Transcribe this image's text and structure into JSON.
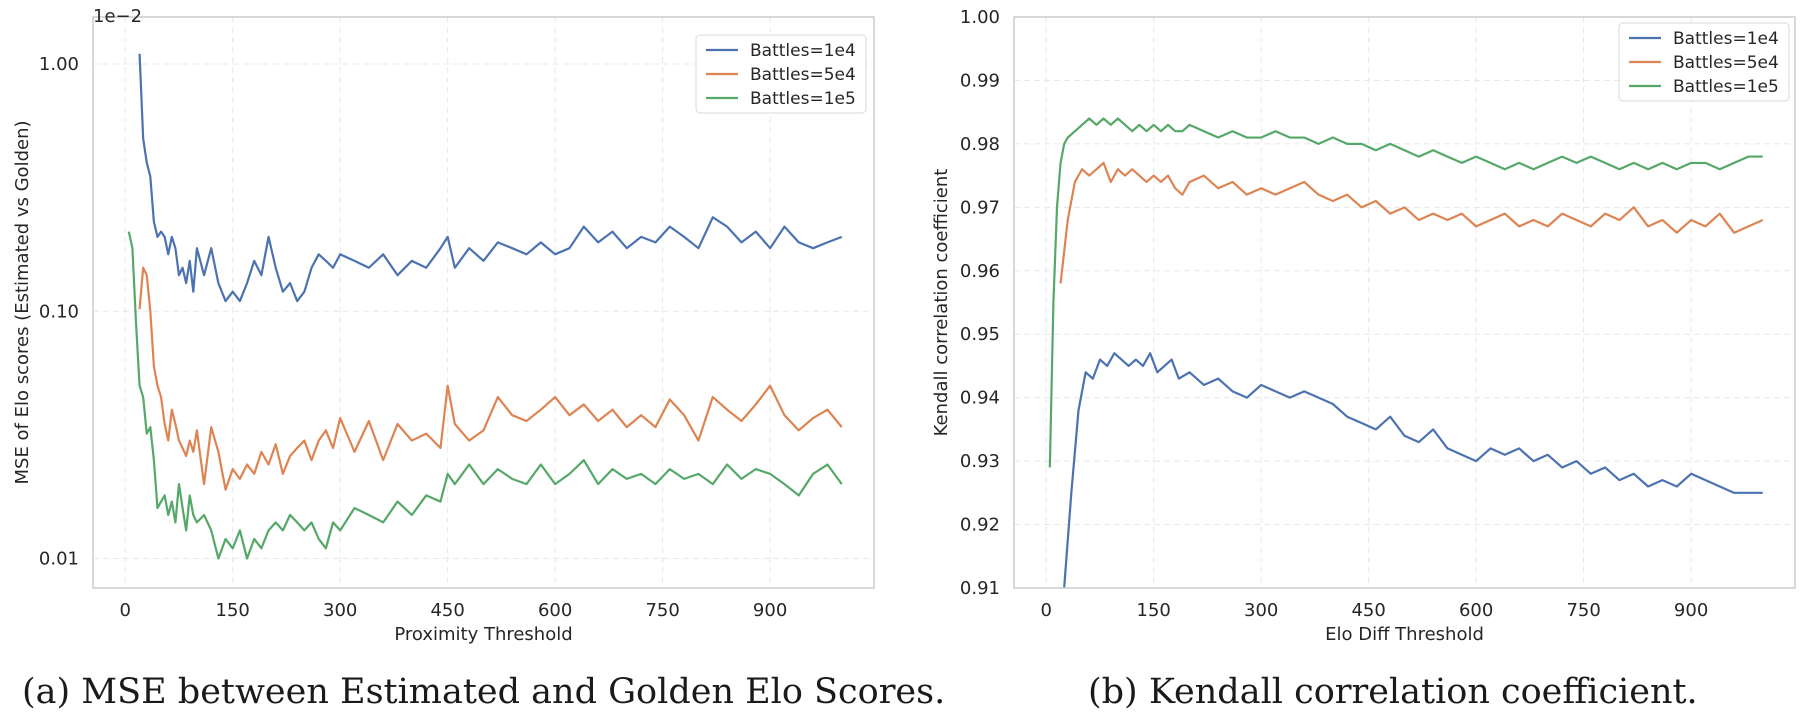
{
  "captions": {
    "a": "(a) MSE between Estimated and Golden Elo Scores.",
    "b": "(b) Kendall correlation coefficient."
  },
  "colors": {
    "blue": "#4c72b0",
    "orange": "#dd8452",
    "green": "#55a868",
    "grid": "#e8e8e8",
    "spine": "#cccccc"
  },
  "chart_data": [
    {
      "type": "line",
      "id": "a",
      "xlabel": "Proximity Threshold",
      "ylabel": "MSE of Elo scores (Estimated vs Golden)",
      "offset_text": "1e−2",
      "yscale": "log",
      "xlim": [
        -45,
        1045
      ],
      "ylim": [
        0.0076,
        1.55
      ],
      "xticks": [
        0,
        150,
        300,
        450,
        600,
        750,
        900
      ],
      "xtick_labels": [
        "0",
        "150",
        "300",
        "450",
        "600",
        "750",
        "900"
      ],
      "yticks": [
        0.01,
        0.1,
        1.0
      ],
      "ytick_labels": [
        "0.01",
        "0.10",
        "1.00"
      ],
      "grid": true,
      "legend_position": "top-right",
      "series": [
        {
          "name": "Battles=1e4",
          "color": "#4c72b0",
          "x": [
            20,
            25,
            30,
            35,
            40,
            45,
            50,
            55,
            60,
            65,
            70,
            75,
            80,
            85,
            90,
            95,
            100,
            110,
            120,
            130,
            140,
            150,
            160,
            170,
            180,
            190,
            200,
            210,
            220,
            230,
            240,
            250,
            260,
            270,
            280,
            290,
            300,
            320,
            340,
            360,
            380,
            400,
            420,
            440,
            450,
            460,
            480,
            500,
            520,
            540,
            560,
            580,
            600,
            620,
            640,
            660,
            680,
            700,
            720,
            740,
            760,
            780,
            800,
            820,
            840,
            860,
            880,
            900,
            920,
            940,
            960,
            980,
            1000
          ],
          "y": [
            1.1,
            0.5,
            0.4,
            0.35,
            0.23,
            0.2,
            0.21,
            0.2,
            0.17,
            0.2,
            0.18,
            0.14,
            0.15,
            0.13,
            0.16,
            0.12,
            0.18,
            0.14,
            0.18,
            0.13,
            0.11,
            0.12,
            0.11,
            0.13,
            0.16,
            0.14,
            0.2,
            0.15,
            0.12,
            0.13,
            0.11,
            0.12,
            0.15,
            0.17,
            0.16,
            0.15,
            0.17,
            0.16,
            0.15,
            0.17,
            0.14,
            0.16,
            0.15,
            0.18,
            0.2,
            0.15,
            0.18,
            0.16,
            0.19,
            0.18,
            0.17,
            0.19,
            0.17,
            0.18,
            0.22,
            0.19,
            0.21,
            0.18,
            0.2,
            0.19,
            0.22,
            0.2,
            0.18,
            0.24,
            0.22,
            0.19,
            0.21,
            0.18,
            0.22,
            0.19,
            0.18,
            0.19,
            0.2
          ]
        },
        {
          "name": "Battles=5e4",
          "color": "#dd8452",
          "x": [
            20,
            25,
            30,
            35,
            40,
            45,
            50,
            55,
            60,
            65,
            70,
            75,
            80,
            85,
            90,
            95,
            100,
            110,
            120,
            130,
            140,
            150,
            160,
            170,
            180,
            190,
            200,
            210,
            220,
            230,
            240,
            250,
            260,
            270,
            280,
            290,
            300,
            320,
            340,
            360,
            380,
            400,
            420,
            440,
            450,
            460,
            480,
            500,
            520,
            540,
            560,
            580,
            600,
            620,
            640,
            660,
            680,
            700,
            720,
            740,
            760,
            780,
            800,
            820,
            840,
            860,
            880,
            900,
            920,
            940,
            960,
            980,
            1000
          ],
          "y": [
            0.102,
            0.15,
            0.14,
            0.1,
            0.06,
            0.05,
            0.045,
            0.035,
            0.03,
            0.04,
            0.035,
            0.03,
            0.028,
            0.026,
            0.03,
            0.027,
            0.033,
            0.02,
            0.034,
            0.027,
            0.019,
            0.023,
            0.021,
            0.024,
            0.022,
            0.027,
            0.024,
            0.029,
            0.022,
            0.026,
            0.028,
            0.03,
            0.025,
            0.03,
            0.033,
            0.028,
            0.037,
            0.027,
            0.036,
            0.025,
            0.035,
            0.03,
            0.032,
            0.028,
            0.05,
            0.035,
            0.03,
            0.033,
            0.045,
            0.038,
            0.036,
            0.04,
            0.045,
            0.038,
            0.042,
            0.036,
            0.04,
            0.034,
            0.038,
            0.034,
            0.044,
            0.038,
            0.03,
            0.045,
            0.04,
            0.036,
            0.042,
            0.05,
            0.038,
            0.033,
            0.037,
            0.04,
            0.034
          ]
        },
        {
          "name": "Battles=1e5",
          "color": "#55a868",
          "x": [
            5,
            10,
            15,
            20,
            25,
            30,
            35,
            40,
            45,
            50,
            55,
            60,
            65,
            70,
            75,
            80,
            85,
            90,
            95,
            100,
            110,
            120,
            130,
            140,
            150,
            160,
            170,
            180,
            190,
            200,
            210,
            220,
            230,
            240,
            250,
            260,
            270,
            280,
            290,
            300,
            320,
            340,
            360,
            380,
            400,
            420,
            440,
            450,
            460,
            480,
            500,
            520,
            540,
            560,
            580,
            600,
            620,
            640,
            660,
            680,
            700,
            720,
            740,
            760,
            780,
            800,
            820,
            840,
            860,
            880,
            900,
            920,
            940,
            960,
            980,
            1000
          ],
          "y": [
            0.21,
            0.18,
            0.09,
            0.05,
            0.045,
            0.032,
            0.034,
            0.025,
            0.016,
            0.017,
            0.018,
            0.015,
            0.017,
            0.014,
            0.02,
            0.016,
            0.013,
            0.018,
            0.015,
            0.014,
            0.015,
            0.013,
            0.01,
            0.012,
            0.011,
            0.013,
            0.01,
            0.012,
            0.011,
            0.013,
            0.014,
            0.013,
            0.015,
            0.014,
            0.013,
            0.014,
            0.012,
            0.011,
            0.014,
            0.013,
            0.016,
            0.015,
            0.014,
            0.017,
            0.015,
            0.018,
            0.017,
            0.022,
            0.02,
            0.024,
            0.02,
            0.023,
            0.021,
            0.02,
            0.024,
            0.02,
            0.022,
            0.025,
            0.02,
            0.023,
            0.021,
            0.022,
            0.02,
            0.023,
            0.021,
            0.022,
            0.02,
            0.024,
            0.021,
            0.023,
            0.022,
            0.02,
            0.018,
            0.022,
            0.024,
            0.02
          ]
        }
      ]
    },
    {
      "type": "line",
      "id": "b",
      "xlabel": "Elo Diff Threshold",
      "ylabel": "Kendall correlation coefficient",
      "xlim": [
        -45,
        1045
      ],
      "ylim": [
        0.91,
        1.0
      ],
      "xticks": [
        0,
        150,
        300,
        450,
        600,
        750,
        900
      ],
      "xtick_labels": [
        "0",
        "150",
        "300",
        "450",
        "600",
        "750",
        "900"
      ],
      "yticks": [
        0.91,
        0.92,
        0.93,
        0.94,
        0.95,
        0.96,
        0.97,
        0.98,
        0.99,
        1.0
      ],
      "ytick_labels": [
        "0.91",
        "0.92",
        "0.93",
        "0.94",
        "0.95",
        "0.96",
        "0.97",
        "0.98",
        "0.99",
        "1.00"
      ],
      "grid": true,
      "legend_position": "top-right",
      "series": [
        {
          "name": "Battles=1e4",
          "color": "#4c72b0",
          "x": [
            25,
            35,
            45,
            55,
            65,
            75,
            85,
            95,
            105,
            115,
            125,
            135,
            145,
            155,
            165,
            175,
            185,
            200,
            220,
            240,
            260,
            280,
            300,
            320,
            340,
            360,
            380,
            400,
            420,
            440,
            460,
            480,
            500,
            520,
            540,
            560,
            580,
            600,
            620,
            640,
            660,
            680,
            700,
            720,
            740,
            760,
            780,
            800,
            820,
            840,
            860,
            880,
            900,
            920,
            940,
            960,
            980,
            1000
          ],
          "y": [
            0.91,
            0.925,
            0.938,
            0.944,
            0.943,
            0.946,
            0.945,
            0.947,
            0.946,
            0.945,
            0.946,
            0.945,
            0.947,
            0.944,
            0.945,
            0.946,
            0.943,
            0.944,
            0.942,
            0.943,
            0.941,
            0.94,
            0.942,
            0.941,
            0.94,
            0.941,
            0.94,
            0.939,
            0.937,
            0.936,
            0.935,
            0.937,
            0.934,
            0.933,
            0.935,
            0.932,
            0.931,
            0.93,
            0.932,
            0.931,
            0.932,
            0.93,
            0.931,
            0.929,
            0.93,
            0.928,
            0.929,
            0.927,
            0.928,
            0.926,
            0.927,
            0.926,
            0.928,
            0.927,
            0.926,
            0.925,
            0.925,
            0.925
          ]
        },
        {
          "name": "Battles=5e4",
          "color": "#dd8452",
          "x": [
            20,
            30,
            40,
            50,
            60,
            70,
            80,
            90,
            100,
            110,
            120,
            130,
            140,
            150,
            160,
            170,
            180,
            190,
            200,
            220,
            240,
            260,
            280,
            300,
            320,
            340,
            360,
            380,
            400,
            420,
            440,
            460,
            480,
            500,
            520,
            540,
            560,
            580,
            600,
            620,
            640,
            660,
            680,
            700,
            720,
            740,
            760,
            780,
            800,
            820,
            840,
            860,
            880,
            900,
            920,
            940,
            960,
            980,
            1000
          ],
          "y": [
            0.958,
            0.968,
            0.974,
            0.976,
            0.975,
            0.976,
            0.977,
            0.974,
            0.976,
            0.975,
            0.976,
            0.975,
            0.974,
            0.975,
            0.974,
            0.975,
            0.973,
            0.972,
            0.974,
            0.975,
            0.973,
            0.974,
            0.972,
            0.973,
            0.972,
            0.973,
            0.974,
            0.972,
            0.971,
            0.972,
            0.97,
            0.971,
            0.969,
            0.97,
            0.968,
            0.969,
            0.968,
            0.969,
            0.967,
            0.968,
            0.969,
            0.967,
            0.968,
            0.967,
            0.969,
            0.968,
            0.967,
            0.969,
            0.968,
            0.97,
            0.967,
            0.968,
            0.966,
            0.968,
            0.967,
            0.969,
            0.966,
            0.967,
            0.968
          ]
        },
        {
          "name": "Battles=1e5",
          "color": "#55a868",
          "x": [
            5,
            10,
            15,
            20,
            25,
            30,
            40,
            50,
            60,
            70,
            80,
            90,
            100,
            110,
            120,
            130,
            140,
            150,
            160,
            170,
            180,
            190,
            200,
            220,
            240,
            260,
            280,
            300,
            320,
            340,
            360,
            380,
            400,
            420,
            440,
            460,
            480,
            500,
            520,
            540,
            560,
            580,
            600,
            620,
            640,
            660,
            680,
            700,
            720,
            740,
            760,
            780,
            800,
            820,
            840,
            860,
            880,
            900,
            920,
            940,
            960,
            980,
            1000
          ],
          "y": [
            0.929,
            0.955,
            0.97,
            0.977,
            0.98,
            0.981,
            0.982,
            0.983,
            0.984,
            0.983,
            0.984,
            0.983,
            0.984,
            0.983,
            0.982,
            0.983,
            0.982,
            0.983,
            0.982,
            0.983,
            0.982,
            0.982,
            0.983,
            0.982,
            0.981,
            0.982,
            0.981,
            0.981,
            0.982,
            0.981,
            0.981,
            0.98,
            0.981,
            0.98,
            0.98,
            0.979,
            0.98,
            0.979,
            0.978,
            0.979,
            0.978,
            0.977,
            0.978,
            0.977,
            0.976,
            0.977,
            0.976,
            0.977,
            0.978,
            0.977,
            0.978,
            0.977,
            0.976,
            0.977,
            0.976,
            0.977,
            0.976,
            0.977,
            0.977,
            0.976,
            0.977,
            0.978,
            0.978
          ]
        }
      ]
    }
  ]
}
